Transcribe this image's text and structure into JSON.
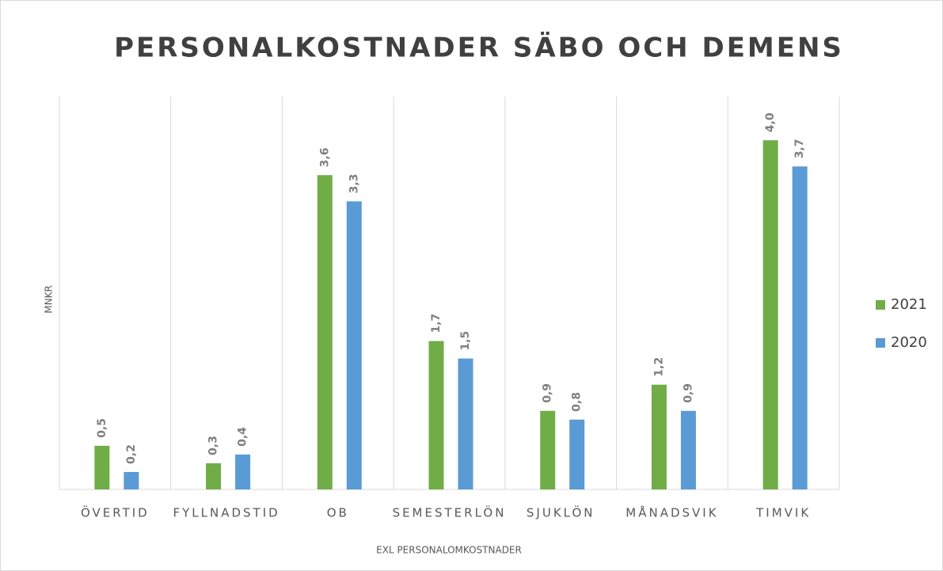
{
  "chart_data": {
    "type": "bar",
    "title": "PERSONALKOSTNADER SÄBO OCH DEMENS",
    "y_label": "MNKR",
    "x_label": "EXL PERSONALOMKOSTNADER",
    "categories": [
      "ÖVERTID",
      "FYLLNADSTID",
      "OB",
      "SEMESTERLÖN",
      "SJUKLÖN",
      "MÅNADSVIK",
      "TIMVIK"
    ],
    "series": [
      {
        "name": "2021",
        "color": "#70ad47",
        "values": [
          0.5,
          0.3,
          3.6,
          1.7,
          0.9,
          1.2,
          4.0
        ],
        "value_labels": [
          "0,5",
          "0,3",
          "3,6",
          "1,7",
          "0,9",
          "1,2",
          "4,0"
        ]
      },
      {
        "name": "2020",
        "color": "#5b9bd5",
        "values": [
          0.2,
          0.4,
          3.3,
          1.5,
          0.8,
          0.9,
          3.7
        ],
        "value_labels": [
          "0,2",
          "0,4",
          "3,3",
          "1,5",
          "0,8",
          "0,9",
          "3,7"
        ]
      }
    ],
    "ylim": [
      0,
      4.5
    ],
    "legend": "right"
  }
}
